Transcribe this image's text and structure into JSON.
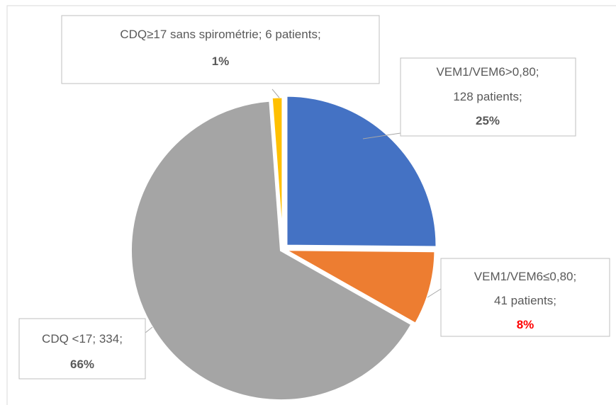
{
  "chart_data": {
    "type": "pie",
    "categories": [
      "VEM1/VEM6>0,80",
      "VEM1/VEM6≤0,80",
      "CDQ <17",
      "CDQ≥17 sans spirométrie"
    ],
    "values": [
      128,
      41,
      334,
      6
    ],
    "value_labels": [
      "128 patients",
      "41 patients",
      "334",
      "6 patients"
    ],
    "percent_labels": [
      "25%",
      "8%",
      "66%",
      "1%"
    ],
    "label_separator": "; ",
    "colors": [
      "#4472c4",
      "#ed7d31",
      "#a5a5a5",
      "#ffc000"
    ],
    "label_colors": [
      "#595959",
      "#ff0000",
      "#595959",
      "#595959"
    ]
  }
}
